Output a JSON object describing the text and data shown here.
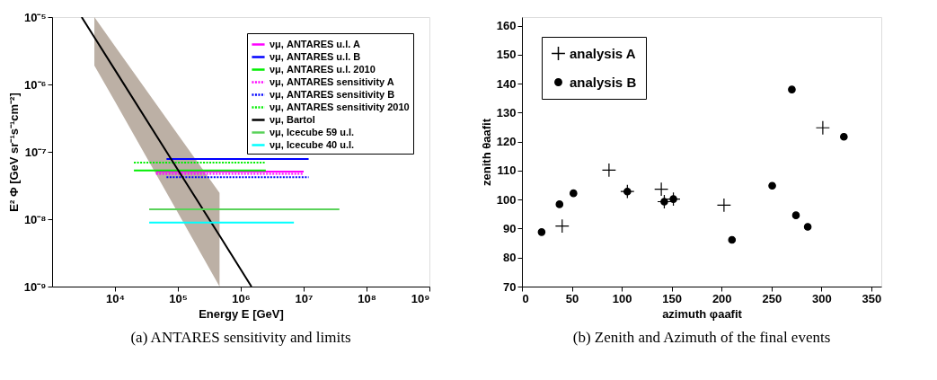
{
  "chart_data": [
    {
      "type": "line",
      "xlabel": "Energy E [GeV]",
      "ylabel": "E² Φ [GeV sr⁻¹s⁻¹cm⁻²]",
      "log": "xy",
      "xlim": [
        1000,
        1000000000
      ],
      "ylim": [
        1e-09,
        1e-05
      ],
      "xticks": [
        {
          "value": 10000,
          "label": "10⁴"
        },
        {
          "value": 100000,
          "label": "10⁵"
        },
        {
          "value": 1000000,
          "label": "10⁶"
        },
        {
          "value": 10000000,
          "label": "10⁷"
        },
        {
          "value": 100000000,
          "label": "10⁸"
        },
        {
          "value": 1000000000,
          "label": "10⁹"
        }
      ],
      "yticks": [
        {
          "value": 1e-09,
          "label": "10⁻⁹"
        },
        {
          "value": 1e-08,
          "label": "10⁻⁸"
        },
        {
          "value": 1e-07,
          "label": "10⁻⁷"
        },
        {
          "value": 1e-06,
          "label": "10⁻⁶"
        },
        {
          "value": 1e-05,
          "label": "10⁻⁵"
        }
      ],
      "grid": false,
      "legend": "top right",
      "annotations": [
        "(a) ANTARES sensitivity and limits"
      ],
      "series": [
        {
          "name": "νμ, ANTARES u.l. A",
          "color": "#ff00ff",
          "line_style": "solid",
          "x": [
            45000,
            10000000
          ],
          "values": [
            5.1e-08,
            5.1e-08
          ]
        },
        {
          "name": "νμ, ANTARES u.l. B",
          "color": "#0000ff",
          "line_style": "solid",
          "x": [
            66000,
            12000000
          ],
          "values": [
            7.8e-08,
            7.8e-08
          ]
        },
        {
          "name": "νμ, ANTARES u.l. 2010",
          "color": "#00ee00",
          "line_style": "solid",
          "x": [
            20000,
            2500000
          ],
          "values": [
            5.3e-08,
            5.3e-08
          ]
        },
        {
          "name": "νμ, ANTARES sensitivity A",
          "color": "#ff00ff",
          "line_style": "dotted",
          "x": [
            45000,
            10000000
          ],
          "values": [
            4.7e-08,
            4.7e-08
          ]
        },
        {
          "name": "νμ, ANTARES sensitivity B",
          "color": "#0000ff",
          "line_style": "dotted",
          "x": [
            66000,
            12000000
          ],
          "values": [
            4.2e-08,
            4.2e-08
          ]
        },
        {
          "name": "νμ, ANTARES sensitivity 2010",
          "color": "#00ee00",
          "line_style": "dotted",
          "x": [
            20000,
            2500000
          ],
          "values": [
            6.9e-08,
            6.9e-08
          ]
        },
        {
          "name": "νμ, Bartol",
          "color": "#000000",
          "line_style": "solid",
          "x": [
            2950,
            4700,
            10000,
            100000,
            460000,
            1480000
          ],
          "values": [
            1e-05,
            5e-06,
            1.64e-06,
            5.4e-08,
            5.7e-09,
            1e-09
          ],
          "lower": [
            null,
            1.9e-06,
            5.6e-07,
            1.25e-08,
            1e-09,
            null
          ],
          "upper": [
            null,
            1e-05,
            3.7e-06,
            1.8e-07,
            2.45e-08,
            null
          ]
        },
        {
          "name": "νμ, Icecube 59 u.l.",
          "color": "#5ad25a",
          "line_style": "solid",
          "x": [
            35000,
            37000000
          ],
          "values": [
            1.4e-08,
            1.4e-08
          ]
        },
        {
          "name": "νμ, Icecube 40 u.l.",
          "color": "#00ffff",
          "line_style": "solid",
          "x": [
            35000,
            7000000
          ],
          "values": [
            8.9e-09,
            8.9e-09
          ]
        }
      ]
    },
    {
      "type": "scatter",
      "xlabel": "azimuth φaafit",
      "ylabel": "zenith θaafit",
      "xlim": [
        0,
        360
      ],
      "ylim": [
        70,
        163
      ],
      "xticks": [
        0,
        50,
        100,
        150,
        200,
        250,
        300,
        350
      ],
      "yticks": [
        70,
        80,
        90,
        100,
        110,
        120,
        130,
        140,
        150,
        160
      ],
      "grid": false,
      "legend": "top left",
      "annotations": [
        "(b) Zenith and Azimuth of the final events"
      ],
      "series": [
        {
          "name": "analysis A",
          "color": "#000000",
          "marker": "cross",
          "x": [
            40.3,
            87.2,
            105.6,
            139.6,
            142.6,
            151.7,
            202.4,
            301.4
          ],
          "values": [
            90.9,
            110.2,
            102.8,
            103.6,
            99.3,
            100.2,
            98.1,
            124.8
          ]
        },
        {
          "name": "analysis B",
          "color": "#000000",
          "marker": "circle",
          "x": [
            19.7,
            37.6,
            51.6,
            105.6,
            142.6,
            151.7,
            210.4,
            250.7,
            270.4,
            274.5,
            286.3,
            322.5
          ],
          "values": [
            88.8,
            98.4,
            102.2,
            102.8,
            99.3,
            100.2,
            86.1,
            104.8,
            138.0,
            94.6,
            90.6,
            121.7
          ]
        }
      ]
    }
  ]
}
